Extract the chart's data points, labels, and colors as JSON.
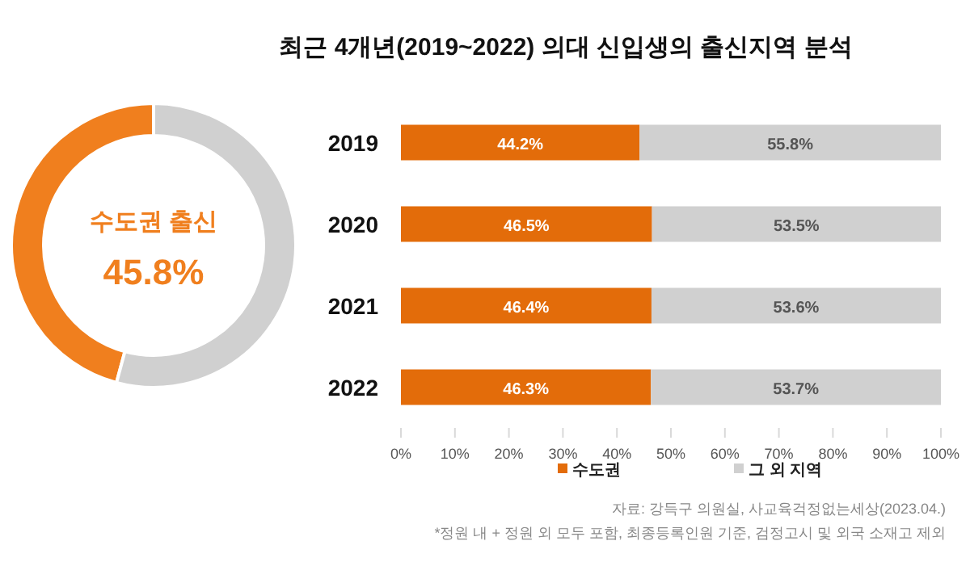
{
  "chart_data": [
    {
      "type": "donut",
      "categories": [
        "수도권 출신",
        null
      ],
      "values": [
        45.8,
        54.2
      ],
      "colors": [
        "#f07f1e",
        "#d0d0d0"
      ],
      "value_labels": [
        "45.8%",
        null
      ]
    },
    {
      "type": "bar",
      "title": "최근 4개년(2019~2022) 의대 신입생의 출신지역 분석",
      "orientation": "horizontal",
      "stacked": true,
      "categories": [
        "2019",
        "2020",
        "2021",
        "2022"
      ],
      "series": [
        {
          "name": "수도권",
          "color": "#e36c0a",
          "values": [
            44.2,
            46.5,
            46.4,
            46.3
          ],
          "value_labels": [
            "44.2%",
            "46.5%",
            "46.4%",
            "46.3%"
          ]
        },
        {
          "name": "그 외 지역",
          "color": "#d0d0d0",
          "values": [
            55.8,
            53.5,
            53.6,
            53.7
          ],
          "value_labels": [
            "55.8%",
            "53.5%",
            "53.6%",
            "53.7%"
          ]
        }
      ],
      "xlim": [
        0,
        100
      ],
      "xticks": [
        {
          "value": 0,
          "label": "0%"
        },
        {
          "value": 10,
          "label": "10%"
        },
        {
          "value": 20,
          "label": "20%"
        },
        {
          "value": 30,
          "label": "30%"
        },
        {
          "value": 40,
          "label": "40%"
        },
        {
          "value": 50,
          "label": "50%"
        },
        {
          "value": 60,
          "label": "60%"
        },
        {
          "value": 70,
          "label": "70%"
        },
        {
          "value": 80,
          "label": "80%"
        },
        {
          "value": 90,
          "label": "90%"
        },
        {
          "value": 100,
          "label": "100%"
        }
      ],
      "legend": "bottom",
      "annotations": [
        "자료: 강득구 의원실, 사교육걱정없는세상(2023.04.)",
        "*정원 내 + 정원 외 모두 포함, 최종등록인원 기준, 검정고시 및 외국 소재고 제외"
      ]
    }
  ]
}
